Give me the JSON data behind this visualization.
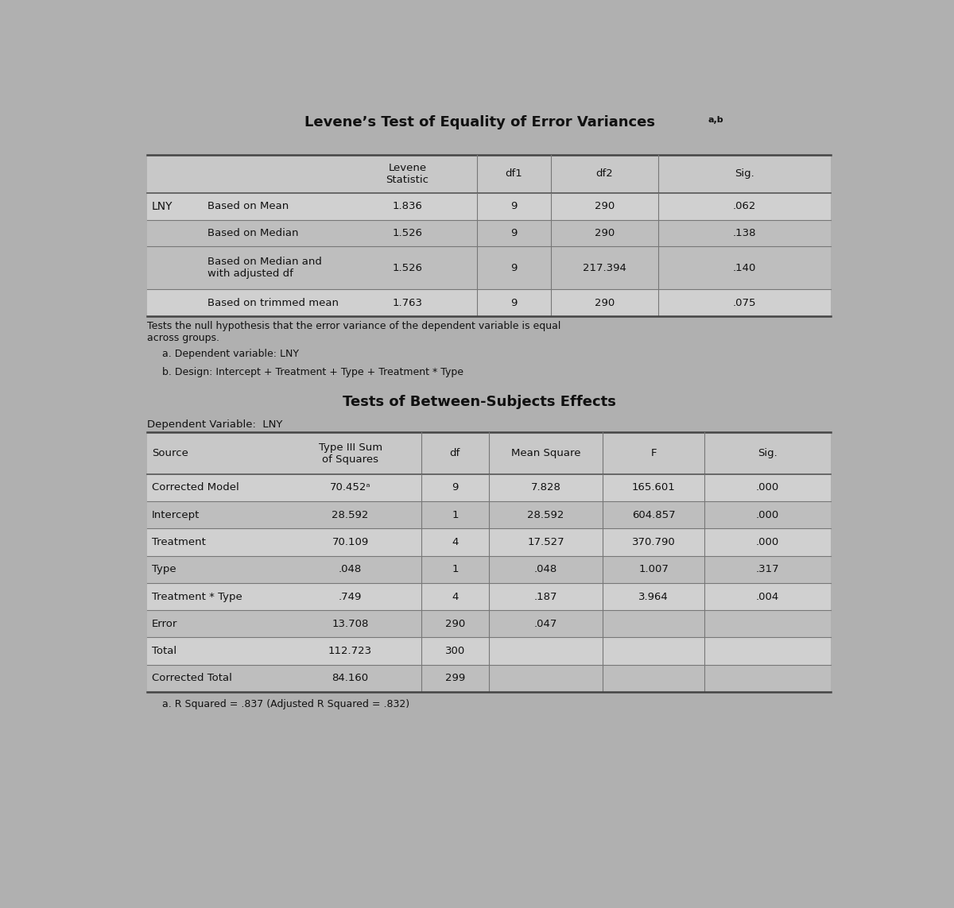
{
  "bg_color": "#b0b0b0",
  "table_bg_header": "#c8c8c8",
  "row_bg_odd": "#d0d0d0",
  "row_bg_even": "#bebebe",
  "text_color": "#111111",
  "title1": "Levene’s Test of Equality of Error Variances",
  "title1_super": "a,b",
  "title2": "Tests of Between-Subjects Effects",
  "dep_var_label1": "Dependent Variable:  LNY",
  "note1": "Tests the null hypothesis that the error variance of the dependent variable is equal\nacross groups.",
  "note_a": "a. Dependent variable: LNY",
  "note_b": "b. Design: Intercept + Treatment + Type + Treatment * Type",
  "note_r2": "a. R Squared = .837 (Adjusted R Squared = .832)",
  "levene_rows": [
    [
      "LNY",
      "Based on Mean",
      "1.836",
      "9",
      "290",
      ".062"
    ],
    [
      "",
      "Based on Median",
      "1.526",
      "9",
      "290",
      ".138"
    ],
    [
      "",
      "Based on Median and\nwith adjusted df",
      "1.526",
      "9",
      "217.394",
      ".140"
    ],
    [
      "",
      "Based on trimmed mean",
      "1.763",
      "9",
      "290",
      ".075"
    ]
  ],
  "bse_rows": [
    [
      "Corrected Model",
      "70.452ᵃ",
      "9",
      "7.828",
      "165.601",
      ".000"
    ],
    [
      "Intercept",
      "28.592",
      "1",
      "28.592",
      "604.857",
      ".000"
    ],
    [
      "Treatment",
      "70.109",
      "4",
      "17.527",
      "370.790",
      ".000"
    ],
    [
      "Type",
      ".048",
      "1",
      ".048",
      "1.007",
      ".317"
    ],
    [
      "Treatment * Type",
      ".749",
      "4",
      ".187",
      "3.964",
      ".004"
    ],
    [
      "Error",
      "13.708",
      "290",
      ".047",
      "",
      ""
    ],
    [
      "Total",
      "112.723",
      "300",
      "",
      "",
      ""
    ],
    [
      "Corrected Total",
      "84.160",
      "299",
      "",
      "",
      ""
    ]
  ],
  "fig_w": 12.0,
  "fig_h": 11.43
}
